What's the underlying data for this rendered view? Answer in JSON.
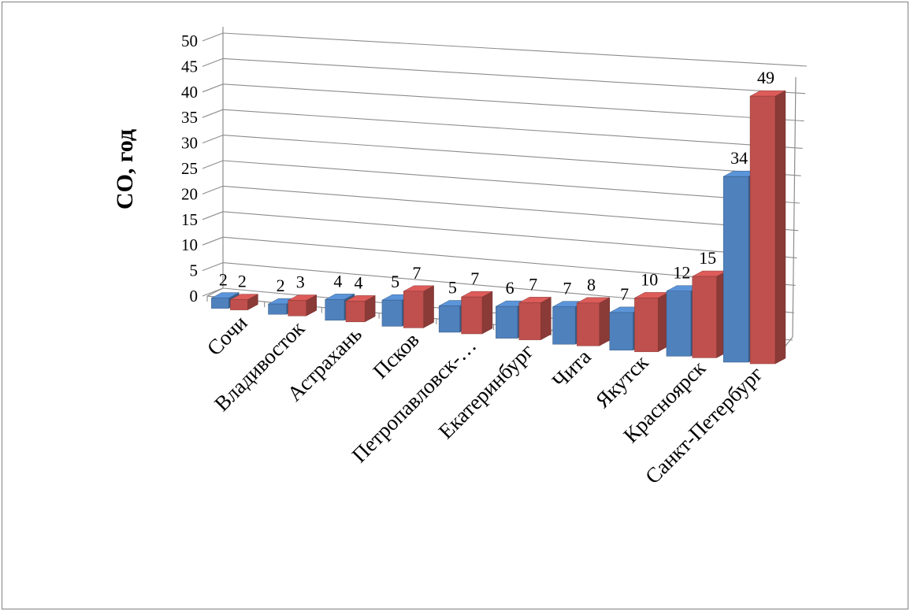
{
  "chart_data": {
    "type": "bar",
    "style": "3d-clustered-column",
    "ylabel": "СО, год",
    "xlabel": "",
    "title": "",
    "ylim": [
      0,
      50
    ],
    "yticks": [
      0,
      5,
      10,
      15,
      20,
      25,
      30,
      35,
      40,
      45,
      50
    ],
    "grid": true,
    "legend": "none",
    "categories": [
      "Сочи",
      "Владивосток",
      "Астрахань",
      "Псков",
      "Петропавловск-…",
      "Екатеринбург",
      "Чита",
      "Якутск",
      "Красноярск",
      "Санкт-Петербург"
    ],
    "series": [
      {
        "color": "#4f81bd",
        "values": [
          2,
          2,
          4,
          5,
          5,
          6,
          7,
          7,
          12,
          34
        ]
      },
      {
        "color": "#c0504d",
        "values": [
          2,
          3,
          4,
          7,
          7,
          7,
          8,
          10,
          15,
          49
        ]
      }
    ]
  }
}
